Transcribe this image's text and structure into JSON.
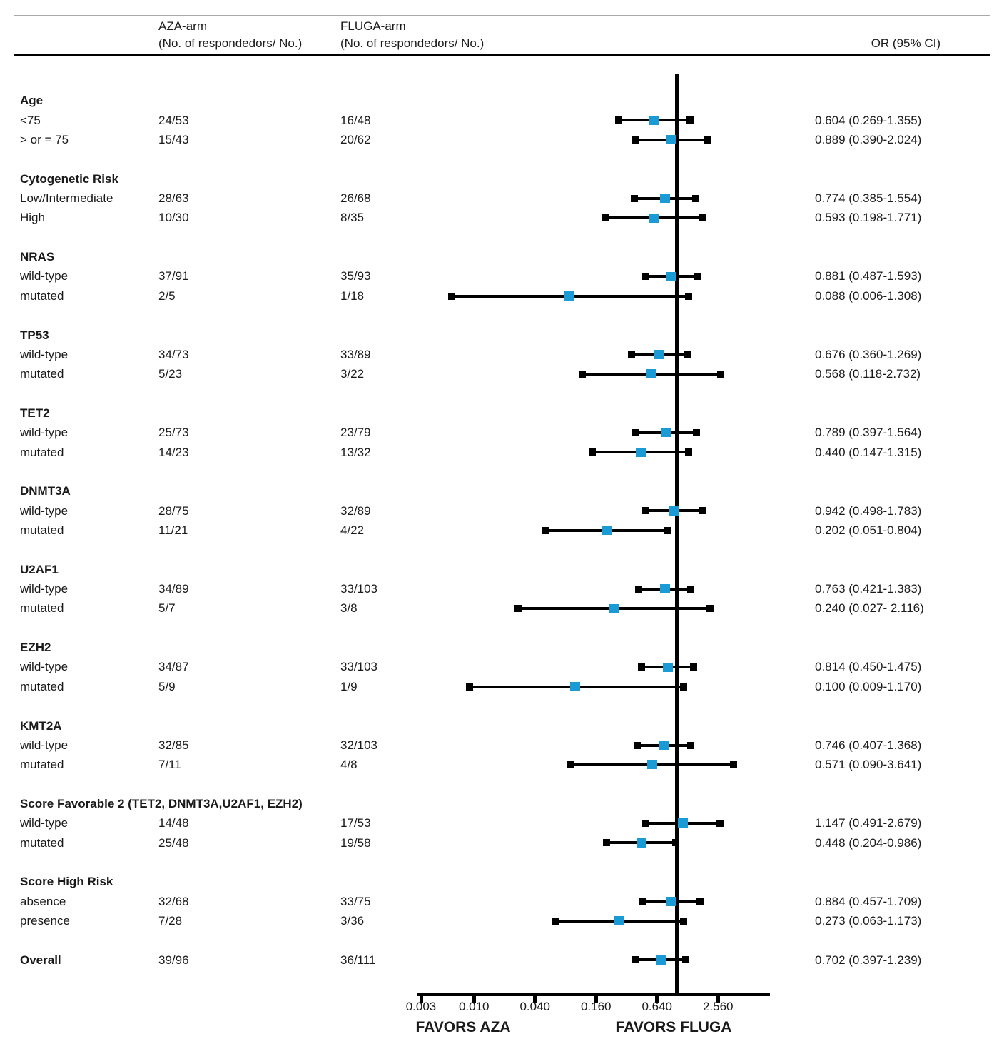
{
  "table": {
    "columns": {
      "aza_line1": "AZA-arm",
      "aza_line2": "(No. of respondedors/ No.)",
      "fluga_line1": "FLUGA-arm",
      "fluga_line2": "(No. of respondedors/ No.)",
      "or_header": "OR (95% CI)"
    }
  },
  "chart_data": {
    "type": "forest",
    "x_scale": "log",
    "marker_color": "#1B9BD5",
    "axis": {
      "ticks": [
        0.003,
        0.01,
        0.04,
        0.16,
        0.64,
        2.56
      ],
      "tick_labels": [
        "0.003",
        "0.010",
        "0.040",
        "0.160",
        "0.640",
        "2.560"
      ],
      "reference_line": 1.0,
      "favors_left": "FAVORS AZA",
      "favors_right": "FAVORS FLUGA"
    },
    "sections": [
      {
        "title": "Age",
        "rows": [
          {
            "label": "<75",
            "aza": "24/53",
            "fluga": "16/48",
            "or": 0.604,
            "ci_low": 0.269,
            "ci_high": 1.355,
            "or_text": "0.604 (0.269-1.355)"
          },
          {
            "label": "> or = 75",
            "aza": "15/43",
            "fluga": "20/62",
            "or": 0.889,
            "ci_low": 0.39,
            "ci_high": 2.024,
            "or_text": "0.889 (0.390-2.024)"
          }
        ]
      },
      {
        "title": "Cytogenetic Risk",
        "rows": [
          {
            "label": "Low/Intermediate",
            "aza": "28/63",
            "fluga": "26/68",
            "or": 0.774,
            "ci_low": 0.385,
            "ci_high": 1.554,
            "or_text": "0.774 (0.385-1.554)"
          },
          {
            "label": "High",
            "aza": "10/30",
            "fluga": "8/35",
            "or": 0.593,
            "ci_low": 0.198,
            "ci_high": 1.771,
            "or_text": "0.593 (0.198-1.771)"
          }
        ]
      },
      {
        "title": "NRAS",
        "rows": [
          {
            "label": "wild-type",
            "aza": "37/91",
            "fluga": "35/93",
            "or": 0.881,
            "ci_low": 0.487,
            "ci_high": 1.593,
            "or_text": "0.881 (0.487-1.593)"
          },
          {
            "label": "mutated",
            "aza": "2/5",
            "fluga": "1/18",
            "or": 0.088,
            "ci_low": 0.006,
            "ci_high": 1.308,
            "or_text": "0.088 (0.006-1.308)"
          }
        ]
      },
      {
        "title": "TP53",
        "rows": [
          {
            "label": "wild-type",
            "aza": "34/73",
            "fluga": "33/89",
            "or": 0.676,
            "ci_low": 0.36,
            "ci_high": 1.269,
            "or_text": "0.676 (0.360-1.269)"
          },
          {
            "label": "mutated",
            "aza": "5/23",
            "fluga": "3/22",
            "or": 0.568,
            "ci_low": 0.118,
            "ci_high": 2.732,
            "or_text": "0.568 (0.118-2.732)"
          }
        ]
      },
      {
        "title": "TET2",
        "rows": [
          {
            "label": "wild-type",
            "aza": "25/73",
            "fluga": "23/79",
            "or": 0.789,
            "ci_low": 0.397,
            "ci_high": 1.564,
            "or_text": "0.789 (0.397-1.564)"
          },
          {
            "label": "mutated",
            "aza": "14/23",
            "fluga": "13/32",
            "or": 0.44,
            "ci_low": 0.147,
            "ci_high": 1.315,
            "or_text": "0.440 (0.147-1.315)"
          }
        ]
      },
      {
        "title": "DNMT3A",
        "rows": [
          {
            "label": "wild-type",
            "aza": "28/75",
            "fluga": "32/89",
            "or": 0.942,
            "ci_low": 0.498,
            "ci_high": 1.783,
            "or_text": "0.942 (0.498-1.783)"
          },
          {
            "label": "mutated",
            "aza": "11/21",
            "fluga": "4/22",
            "or": 0.202,
            "ci_low": 0.051,
            "ci_high": 0.804,
            "or_text": "0.202 (0.051-0.804)"
          }
        ]
      },
      {
        "title": "U2AF1",
        "rows": [
          {
            "label": "wild-type",
            "aza": "34/89",
            "fluga": "33/103",
            "or": 0.763,
            "ci_low": 0.421,
            "ci_high": 1.383,
            "or_text": "0.763 (0.421-1.383)"
          },
          {
            "label": "mutated",
            "aza": "5/7",
            "fluga": "3/8",
            "or": 0.24,
            "ci_low": 0.027,
            "ci_high": 2.116,
            "or_text": "0.240 (0.027- 2.116)"
          }
        ]
      },
      {
        "title": "EZH2",
        "rows": [
          {
            "label": "wild-type",
            "aza": "34/87",
            "fluga": "33/103",
            "or": 0.814,
            "ci_low": 0.45,
            "ci_high": 1.475,
            "or_text": "0.814 (0.450-1.475)"
          },
          {
            "label": "mutated",
            "aza": "5/9",
            "fluga": "1/9",
            "or": 0.1,
            "ci_low": 0.009,
            "ci_high": 1.17,
            "or_text": "0.100 (0.009-1.170)"
          }
        ]
      },
      {
        "title": "KMT2A",
        "rows": [
          {
            "label": "wild-type",
            "aza": "32/85",
            "fluga": "32/103",
            "or": 0.746,
            "ci_low": 0.407,
            "ci_high": 1.368,
            "or_text": "0.746 (0.407-1.368)"
          },
          {
            "label": "mutated",
            "aza": "7/11",
            "fluga": "4/8",
            "or": 0.571,
            "ci_low": 0.09,
            "ci_high": 3.641,
            "or_text": "0.571 (0.090-3.641)"
          }
        ]
      },
      {
        "title": "Score Favorable 2 (TET2, DNMT3A,U2AF1, EZH2)",
        "rows": [
          {
            "label": "wild-type",
            "aza": "14/48",
            "fluga": "17/53",
            "or": 1.147,
            "ci_low": 0.491,
            "ci_high": 2.679,
            "or_text": "1.147 (0.491-2.679)"
          },
          {
            "label": "mutated",
            "aza": "25/48",
            "fluga": "19/58",
            "or": 0.448,
            "ci_low": 0.204,
            "ci_high": 0.986,
            "or_text": "0.448 (0.204-0.986)"
          }
        ]
      },
      {
        "title": "Score High Risk",
        "rows": [
          {
            "label": "absence",
            "aza": "32/68",
            "fluga": "33/75",
            "or": 0.884,
            "ci_low": 0.457,
            "ci_high": 1.709,
            "or_text": "0.884 (0.457-1.709)"
          },
          {
            "label": "presence",
            "aza": "7/28",
            "fluga": "3/36",
            "or": 0.273,
            "ci_low": 0.063,
            "ci_high": 1.173,
            "or_text": "0.273 (0.063-1.173)"
          }
        ]
      }
    ],
    "overall": {
      "label": "Overall",
      "aza": "39/96",
      "fluga": "36/111",
      "or": 0.702,
      "ci_low": 0.397,
      "ci_high": 1.239,
      "or_text": "0.702 (0.397-1.239)"
    }
  }
}
